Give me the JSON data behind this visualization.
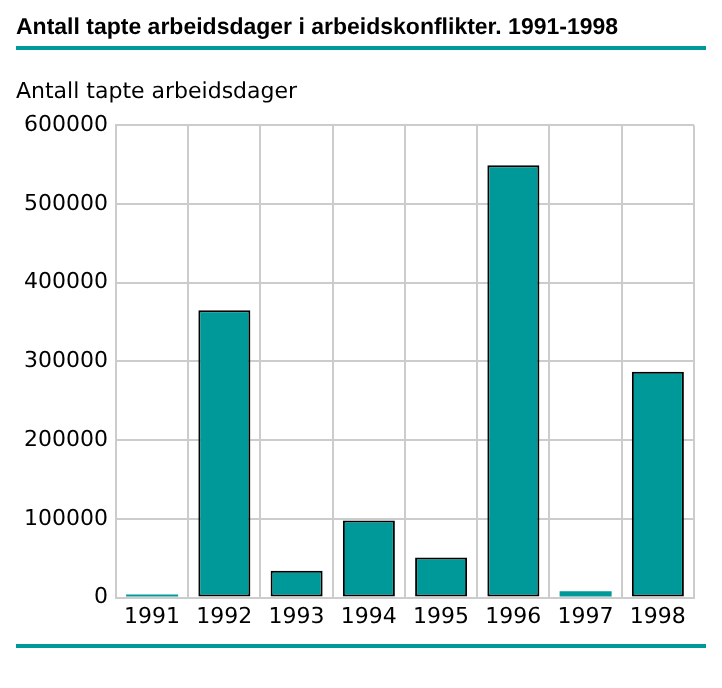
{
  "chart_data": {
    "type": "bar",
    "title": "Antall tapte arbeidsdager i arbeidskonflikter. 1991-1998",
    "ylabel": "Antall tapte arbeidsdager",
    "categories": [
      "1991",
      "1992",
      "1993",
      "1994",
      "1995",
      "1996",
      "1997",
      "1998"
    ],
    "values": [
      4000,
      365000,
      34000,
      98000,
      51000,
      549000,
      8000,
      287000
    ],
    "color": "#009999",
    "ylim": [
      0,
      600000
    ],
    "yticks": [
      0,
      100000,
      200000,
      300000,
      400000,
      500000,
      600000
    ],
    "grid": true
  }
}
